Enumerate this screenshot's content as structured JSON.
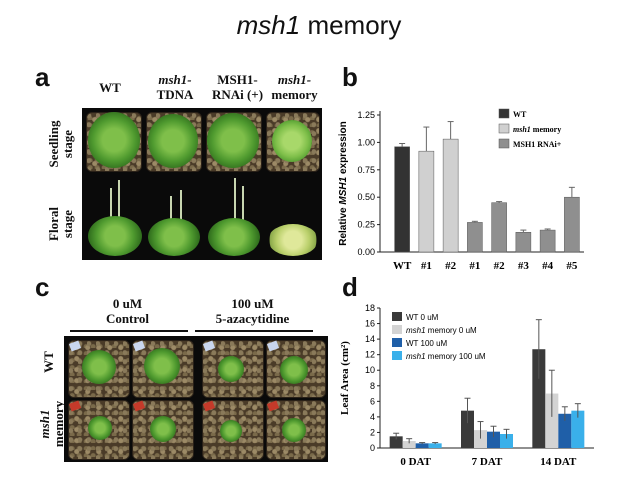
{
  "title": {
    "italic": "msh1",
    "rest": " memory"
  },
  "panel_a": {
    "label": "a",
    "col_headers": [
      {
        "line1": "WT",
        "line2": ""
      },
      {
        "line1": "msh1-",
        "line2": "TDNA"
      },
      {
        "line1": "MSH1-",
        "line2": "RNAi (+)"
      },
      {
        "line1": "msh1-",
        "line2": "memory"
      }
    ],
    "row_headers": [
      {
        "line1": "Seedling",
        "line2": "stage"
      },
      {
        "line1": "Floral",
        "line2": "stage"
      }
    ]
  },
  "panel_b": {
    "label": "b"
  },
  "panel_c": {
    "label": "c",
    "col_headers": [
      {
        "line1": "0 uM",
        "line2": "Control"
      },
      {
        "line1": "100 uM",
        "line2": "5-azacytidine"
      }
    ],
    "row_headers": [
      {
        "line1": "WT",
        "line2": ""
      },
      {
        "line1": "msh1",
        "line2": "memory"
      }
    ]
  },
  "panel_d": {
    "label": "d"
  },
  "chart_data": [
    {
      "type": "bar",
      "panel": "b",
      "ylabel": "Relative MSH1 expression",
      "ylim": [
        0,
        1.25
      ],
      "yticks": [
        "0.00",
        "0.25",
        "0.50",
        "0.75",
        "1.00",
        "1.25"
      ],
      "categories": [
        "WT",
        "#1",
        "#2",
        "#1",
        "#2",
        "#3",
        "#4",
        "#5"
      ],
      "values": [
        0.96,
        0.92,
        1.03,
        0.27,
        0.45,
        0.18,
        0.2,
        0.5
      ],
      "errors": [
        0.03,
        0.22,
        0.16,
        0.01,
        0.01,
        0.02,
        0.01,
        0.09
      ],
      "groups": [
        0,
        1,
        1,
        2,
        2,
        2,
        2,
        2
      ],
      "legend": [
        {
          "name": "WT",
          "italic": "",
          "color": "#333333"
        },
        {
          "name": " memory",
          "italic": "msh1",
          "color": "#d0d0d0"
        },
        {
          "name": "MSH1 RNAi+",
          "italic": "",
          "color": "#8f8f8f"
        }
      ],
      "legend_position": "top-right",
      "grid": false
    },
    {
      "type": "bar",
      "panel": "d",
      "ylabel": "Leaf Area (cm²)",
      "ylim": [
        0,
        18
      ],
      "yticks": [
        "0",
        "2",
        "4",
        "6",
        "8",
        "10",
        "12",
        "14",
        "16",
        "18"
      ],
      "categories": [
        "0 DAT",
        "7 DAT",
        "14 DAT"
      ],
      "series": [
        {
          "name": "WT 0 uM",
          "italic": "",
          "color": "#3a3a3a",
          "values": [
            1.5,
            4.8,
            12.7
          ],
          "errors": [
            0.4,
            1.6,
            3.8
          ]
        },
        {
          "name": " memory 0 uM",
          "italic": "msh1",
          "color": "#d3d3d3",
          "values": [
            0.9,
            2.3,
            7.0
          ],
          "errors": [
            0.3,
            1.1,
            3.0
          ]
        },
        {
          "name": "WT 100 uM",
          "italic": "",
          "color": "#1f5fa8",
          "values": [
            0.6,
            2.1,
            4.4
          ],
          "errors": [
            0.1,
            0.7,
            0.9
          ]
        },
        {
          "name": " memory 100 uM",
          "italic": "msh1",
          "color": "#3ab0ea",
          "values": [
            0.6,
            1.8,
            4.8
          ],
          "errors": [
            0.1,
            0.6,
            0.9
          ]
        }
      ],
      "legend_position": "top-left",
      "grid": false
    }
  ]
}
